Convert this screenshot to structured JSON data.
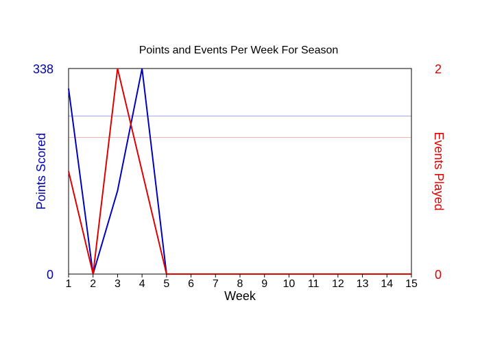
{
  "chart_data": {
    "type": "line",
    "title": "Points and Events Per Week For Season",
    "xlabel": "Week",
    "ylabel_left": "Points Scored",
    "ylabel_right": "Events Played",
    "x": [
      1,
      2,
      3,
      4,
      5,
      6,
      7,
      8,
      9,
      10,
      11,
      12,
      13,
      14,
      15
    ],
    "x_tick_labels": [
      "1",
      "2",
      "3",
      "4",
      "5",
      "6",
      "7",
      "8",
      "9",
      "10",
      "11",
      "12",
      "13",
      "14",
      "15"
    ],
    "y_left": {
      "min": 0,
      "max": 338,
      "tick_labels": [
        "0",
        "338"
      ]
    },
    "y_right": {
      "min": 0,
      "max": 2,
      "tick_labels": [
        "0",
        "2"
      ]
    },
    "series": [
      {
        "axis": "left",
        "color": "#0000bb",
        "values": [
          305,
          0,
          137,
          338,
          0,
          0,
          0,
          0,
          0,
          0,
          0,
          0,
          0,
          0,
          0
        ],
        "reference_line": 260
      },
      {
        "axis": "right",
        "color": "#dd0000",
        "values": [
          1,
          0,
          2,
          1,
          0,
          0,
          0,
          0,
          0,
          0,
          0,
          0,
          0,
          0,
          0
        ],
        "reference_line": 1.33
      }
    ]
  }
}
